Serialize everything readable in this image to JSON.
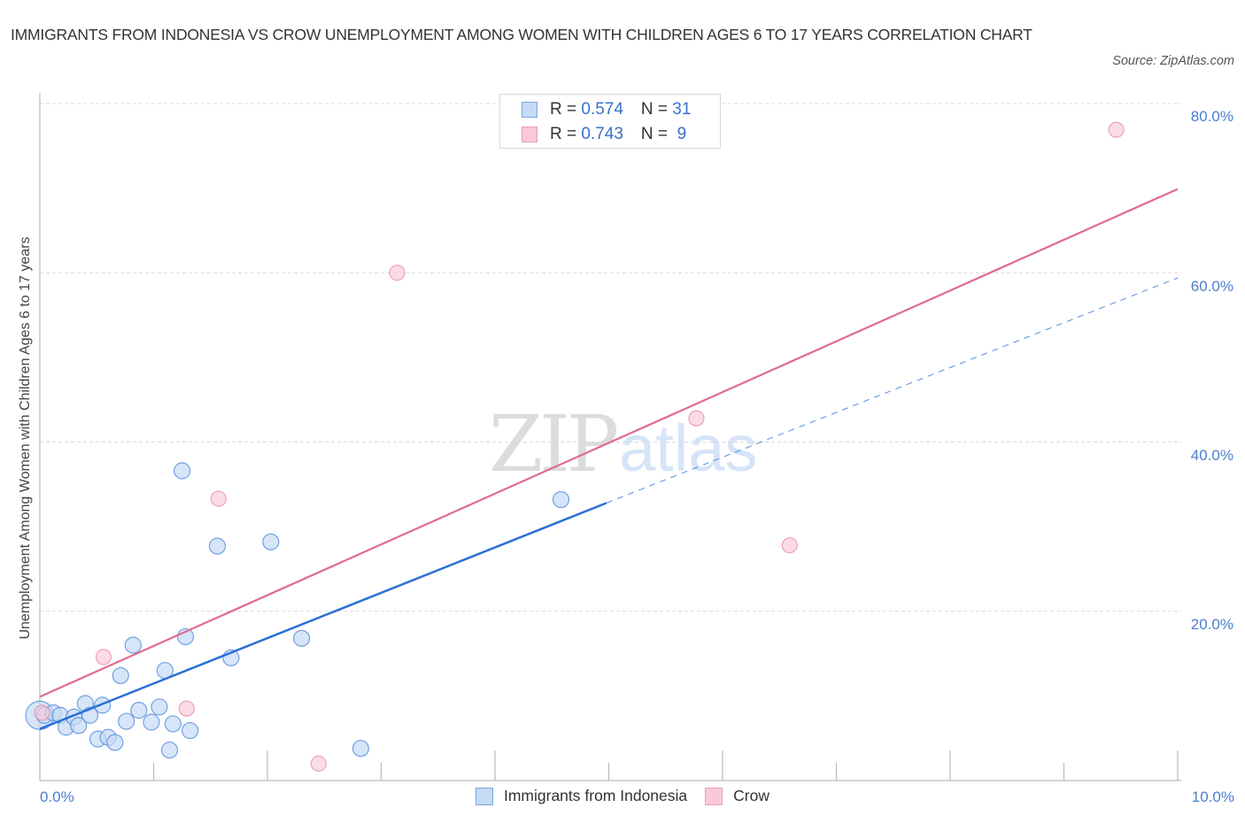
{
  "title": "IMMIGRANTS FROM INDONESIA VS CROW UNEMPLOYMENT AMONG WOMEN WITH CHILDREN AGES 6 TO 17 YEARS CORRELATION CHART",
  "source": "Source: ZipAtlas.com",
  "watermark": {
    "zip": "ZIP",
    "atlas": "atlas"
  },
  "colors": {
    "blue": "#4a86d8",
    "blue_fill": "#c5daf5",
    "blue_line": "#2a6fd6",
    "pink": "#e87fa0",
    "pink_fill": "#f9c9d7",
    "pink_line": "#e06a92",
    "tick_label": "#4a7fd0"
  },
  "legend": {
    "rows": [
      {
        "r_label": "R = ",
        "r_value": "0.574",
        "n_label": "N = ",
        "n_value": "31"
      },
      {
        "r_label": "R = ",
        "r_value": "0.743",
        "n_label": "N = ",
        "n_value": " 9"
      }
    ]
  },
  "bottom_legend": [
    "Immigrants from Indonesia",
    "Crow"
  ],
  "chart_data": {
    "type": "scatter",
    "title": "IMMIGRANTS FROM INDONESIA VS CROW UNEMPLOYMENT AMONG WOMEN WITH CHILDREN AGES 6 TO 17 YEARS CORRELATION CHART",
    "xlabel": "",
    "ylabel": "Unemployment Among Women with Children Ages 6 to 17 years",
    "xlim": [
      0,
      10
    ],
    "ylim": [
      0,
      80
    ],
    "x_tick_labels": [
      "0.0%",
      "10.0%"
    ],
    "y_tick_labels": [
      "20.0%",
      "40.0%",
      "60.0%",
      "80.0%"
    ],
    "y_ticks": [
      20,
      40,
      60,
      80
    ],
    "grid": true,
    "legend_position": "top-center",
    "series": [
      {
        "name": "Immigrants from Indonesia",
        "R": 0.574,
        "N": 31,
        "x": [
          0.0,
          0.04,
          0.12,
          0.18,
          0.23,
          0.3,
          0.34,
          0.4,
          0.44,
          0.51,
          0.55,
          0.6,
          0.66,
          0.71,
          0.76,
          0.82,
          0.87,
          0.98,
          1.05,
          1.1,
          1.14,
          1.17,
          1.25,
          1.28,
          1.32,
          1.56,
          1.68,
          2.03,
          2.3,
          2.82,
          4.58
        ],
        "y": [
          7.7,
          7.7,
          8.0,
          7.7,
          6.3,
          7.5,
          6.5,
          9.1,
          7.7,
          4.9,
          8.9,
          5.1,
          4.5,
          12.4,
          7.0,
          16.0,
          8.3,
          6.9,
          8.7,
          13.0,
          3.6,
          6.7,
          36.6,
          17.0,
          5.9,
          27.7,
          14.5,
          28.2,
          16.8,
          3.8,
          33.2
        ],
        "trend": {
          "x0": 0.0,
          "y0": 6.1,
          "x1": 4.98,
          "y1": 32.8,
          "dashed_to_x": 10.0,
          "dashed_to_y": 59.4
        }
      },
      {
        "name": "Crow",
        "R": 0.743,
        "N": 9,
        "x": [
          0.02,
          0.56,
          1.29,
          1.57,
          2.45,
          3.14,
          5.77,
          6.59,
          9.46
        ],
        "y": [
          8.0,
          14.6,
          8.5,
          33.3,
          2.0,
          60.0,
          42.8,
          27.8,
          76.9
        ],
        "trend": {
          "x0": 0.0,
          "y0": 9.9,
          "x1": 10.0,
          "y1": 69.9
        }
      }
    ]
  }
}
